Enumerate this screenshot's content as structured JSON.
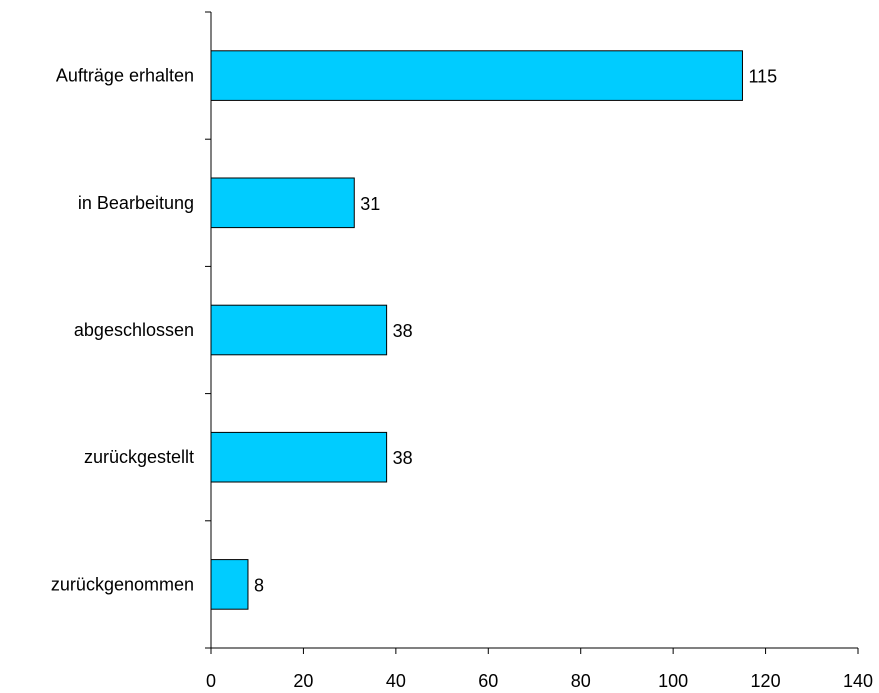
{
  "chart_data": {
    "type": "bar",
    "orientation": "horizontal",
    "categories": [
      "Aufträge erhalten",
      "in Bearbeitung",
      "abgeschlossen",
      "zurückgestellt",
      "zurückgenommen"
    ],
    "values": [
      115,
      31,
      38,
      38,
      8
    ],
    "value_labels": [
      "115",
      "31",
      "38",
      "38",
      "8"
    ],
    "title": "",
    "xlabel": "",
    "ylabel": "",
    "xlim": [
      0,
      140
    ],
    "x_ticks": [
      0,
      20,
      40,
      60,
      80,
      100,
      120,
      140
    ],
    "x_tick_labels": [
      "0",
      "20",
      "40",
      "60",
      "80",
      "100",
      "120",
      "140"
    ],
    "grid": false,
    "legend": "none",
    "bar_color": "#00CCFF",
    "bar_edge_color": "#000000"
  }
}
